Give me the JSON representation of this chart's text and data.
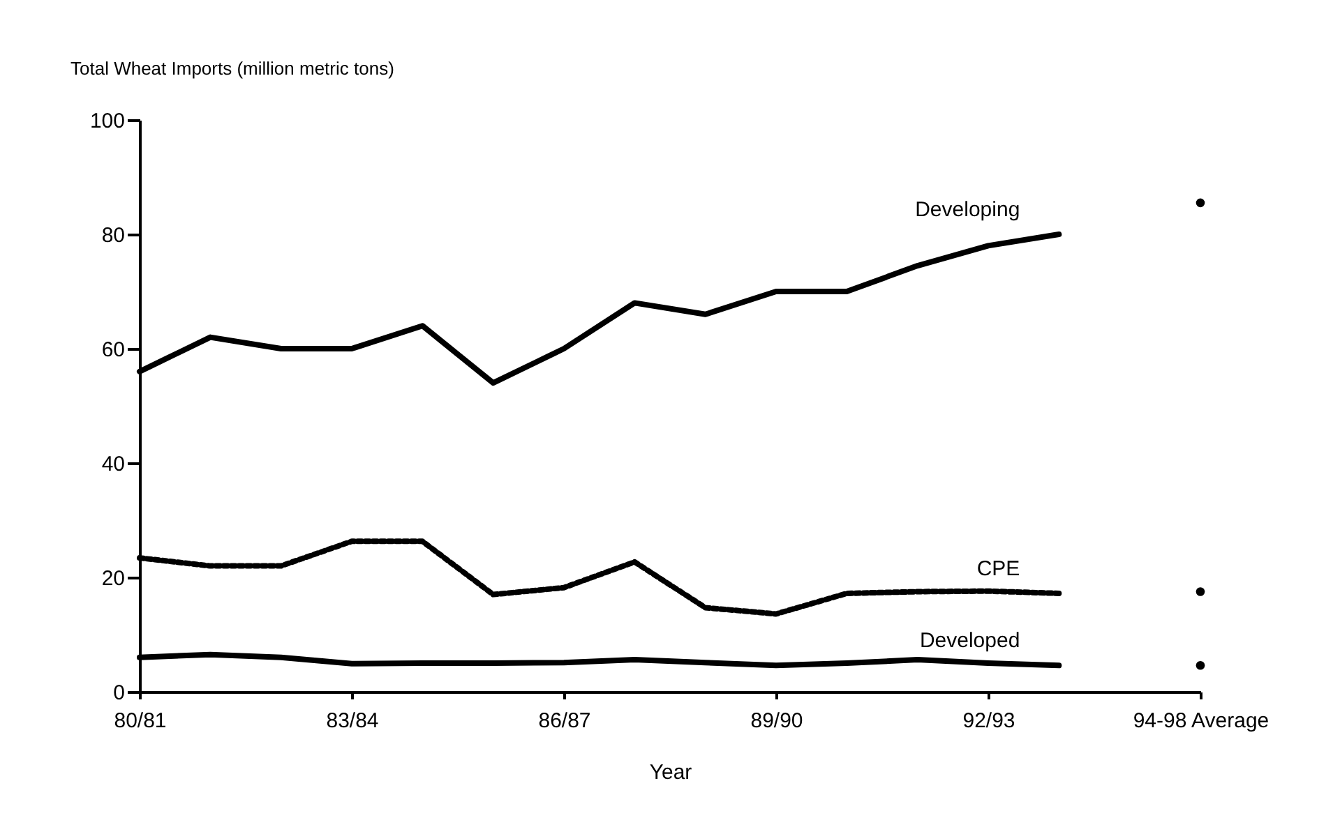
{
  "chart_data": {
    "type": "line",
    "ylabel": "Total Wheat Imports (million metric tons)",
    "xlabel": "Year",
    "categories": [
      "80/81",
      null,
      null,
      "83/84",
      null,
      null,
      "86/87",
      null,
      null,
      "89/90",
      null,
      null,
      "92/93",
      null,
      null,
      "94-98 Average"
    ],
    "series": [
      {
        "name": "Developing",
        "color": "#000000",
        "line_style": "solid",
        "marker": "none",
        "values": [
          56,
          62,
          60,
          60,
          64,
          54,
          60,
          68,
          66,
          70,
          70,
          74.5,
          78,
          80,
          null,
          null
        ]
      },
      {
        "name": "CPE",
        "color": "#000000",
        "line_style": "dotted",
        "marker": "none",
        "values": [
          23.4,
          22,
          22,
          26.3,
          26.3,
          17,
          18.2,
          22.7,
          14.7,
          13.6,
          17.2,
          17.5,
          17.6,
          17.2,
          null,
          null
        ]
      },
      {
        "name": "Developed",
        "color": "#000000",
        "line_style": "solid",
        "marker": "none",
        "values": [
          6,
          6.5,
          6,
          4.9,
          5,
          5,
          5.1,
          5.6,
          5.1,
          4.6,
          5,
          5.6,
          5,
          4.6,
          null,
          null
        ]
      },
      {
        "type": "scatter",
        "color": "#000000",
        "marker": "circle",
        "x": [
          "94-98 Average"
        ],
        "values": [
          85.5
        ]
      },
      {
        "type": "scatter",
        "color": "#000000",
        "marker": "circle",
        "x": [
          "94-98 Average"
        ],
        "values": [
          17.5
        ]
      },
      {
        "type": "scatter",
        "color": "#000000",
        "marker": "circle",
        "x": [
          "94-98 Average"
        ],
        "values": [
          4.6
        ]
      }
    ],
    "ylim": [
      0,
      100
    ],
    "yticks": [
      0,
      20,
      40,
      60,
      80,
      100
    ],
    "grid": false
  }
}
